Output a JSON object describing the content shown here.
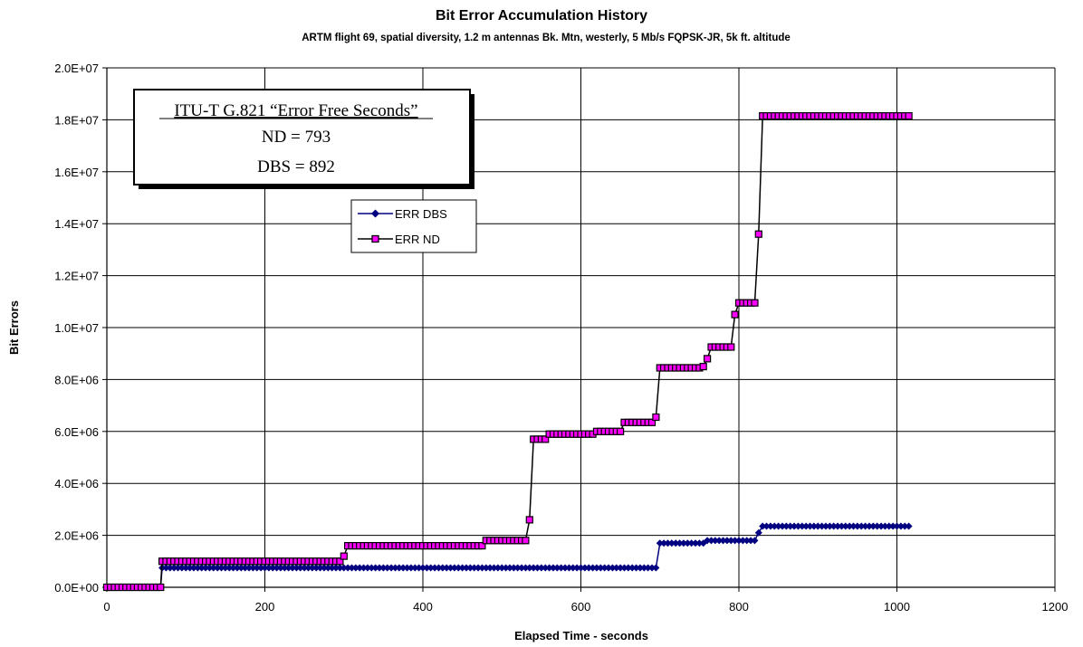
{
  "chart_data": {
    "type": "line",
    "title": "Bit Error Accumulation History",
    "subtitle": "ARTM flight 69, spatial diversity, 1.2 m antennas Bk. Mtn, westerly, 5 Mb/s FQPSK-JR, 5k ft. altitude",
    "xlabel": "Elapsed Time - seconds",
    "ylabel": "Bit Errors",
    "xlim": [
      0,
      1200
    ],
    "ylim": [
      0,
      20000000
    ],
    "x_ticks": [
      "0",
      "200",
      "400",
      "600",
      "800",
      "1000",
      "1200"
    ],
    "y_ticks": [
      "0.0E+00",
      "2.0E+06",
      "4.0E+06",
      "6.0E+06",
      "8.0E+06",
      "1.0E+07",
      "1.2E+07",
      "1.4E+07",
      "1.6E+07",
      "1.8E+07",
      "2.0E+07"
    ],
    "grid": "major gridlines",
    "legend_position": "upper-left, inside plot",
    "annotation": {
      "line1": "ITU-T G.821 “Error Free Seconds”",
      "line2": "ND = 793",
      "line3": "DBS = 892"
    },
    "series": [
      {
        "name": "ERR DBS",
        "color": "#000080",
        "marker": "diamond",
        "steps": [
          {
            "x": 0,
            "y": 0
          },
          {
            "x": 68,
            "y": 0
          },
          {
            "x": 70,
            "y": 750000
          },
          {
            "x": 695,
            "y": 750000
          },
          {
            "x": 700,
            "y": 1700000
          },
          {
            "x": 755,
            "y": 1700000
          },
          {
            "x": 760,
            "y": 1800000
          },
          {
            "x": 820,
            "y": 1800000
          },
          {
            "x": 825,
            "y": 2100000
          },
          {
            "x": 830,
            "y": 2350000
          },
          {
            "x": 1015,
            "y": 2350000
          }
        ]
      },
      {
        "name": "ERR ND",
        "color": "#000000",
        "marker": "square",
        "marker_fill": "#ff00ff",
        "steps": [
          {
            "x": 0,
            "y": 0
          },
          {
            "x": 68,
            "y": 0
          },
          {
            "x": 70,
            "y": 1000000
          },
          {
            "x": 295,
            "y": 1000000
          },
          {
            "x": 300,
            "y": 1200000
          },
          {
            "x": 305,
            "y": 1600000
          },
          {
            "x": 475,
            "y": 1600000
          },
          {
            "x": 480,
            "y": 1800000
          },
          {
            "x": 530,
            "y": 1800000
          },
          {
            "x": 535,
            "y": 2600000
          },
          {
            "x": 540,
            "y": 5700000
          },
          {
            "x": 555,
            "y": 5700000
          },
          {
            "x": 560,
            "y": 5900000
          },
          {
            "x": 615,
            "y": 5900000
          },
          {
            "x": 620,
            "y": 6000000
          },
          {
            "x": 650,
            "y": 6000000
          },
          {
            "x": 655,
            "y": 6350000
          },
          {
            "x": 690,
            "y": 6350000
          },
          {
            "x": 695,
            "y": 6550000
          },
          {
            "x": 700,
            "y": 8450000
          },
          {
            "x": 750,
            "y": 8450000
          },
          {
            "x": 755,
            "y": 8500000
          },
          {
            "x": 760,
            "y": 8800000
          },
          {
            "x": 765,
            "y": 9250000
          },
          {
            "x": 790,
            "y": 9250000
          },
          {
            "x": 795,
            "y": 10500000
          },
          {
            "x": 800,
            "y": 10950000
          },
          {
            "x": 820,
            "y": 10950000
          },
          {
            "x": 825,
            "y": 13600000
          },
          {
            "x": 830,
            "y": 18150000
          },
          {
            "x": 1015,
            "y": 18150000
          }
        ]
      }
    ]
  }
}
